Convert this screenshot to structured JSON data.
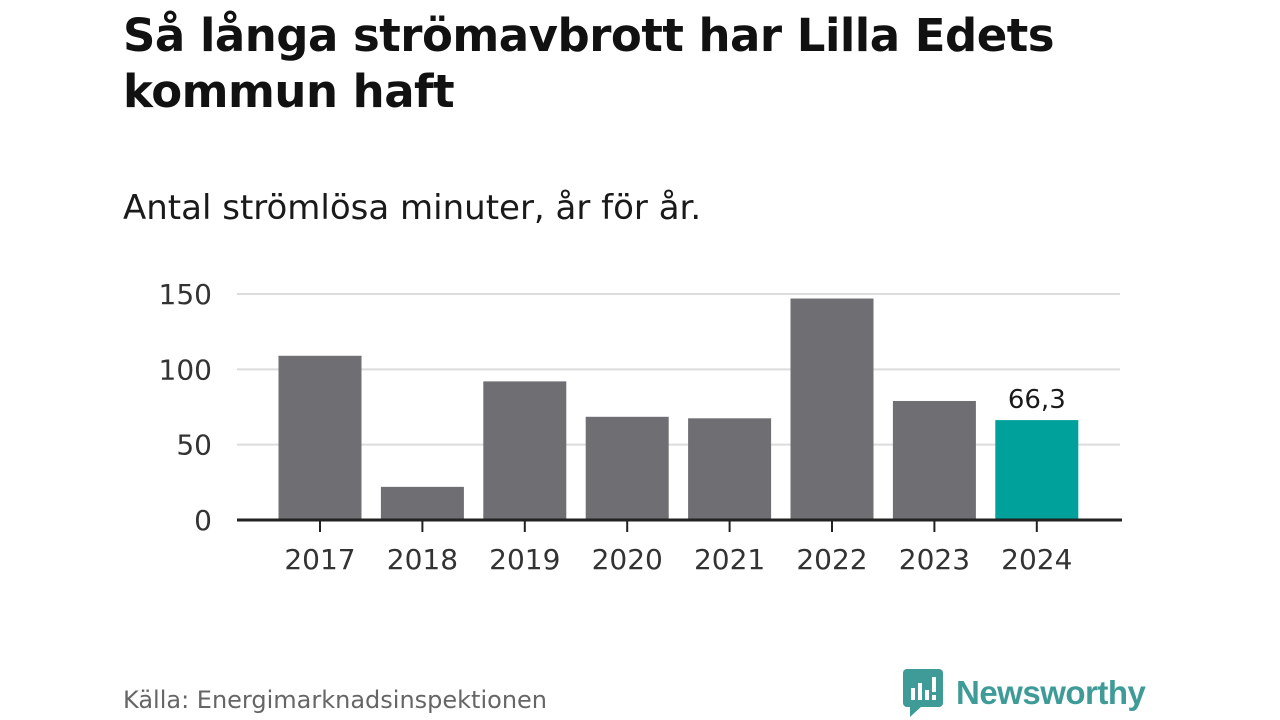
{
  "header": {
    "title": "Så långa strömavbrott har Lilla Edets kommun haft",
    "subtitle": "Antal strömlösa minuter, år för år."
  },
  "footer": {
    "source": "Källa: Energimarknadsinspektionen",
    "brand": "Newsworthy"
  },
  "colors": {
    "bar": "#6f6e73",
    "highlight": "#00a19a",
    "grid": "#dcdcdc",
    "axis": "#222222",
    "brand": "#3f9b98"
  },
  "chart_data": {
    "type": "bar",
    "title": "Så långa strömavbrott har Lilla Edets kommun haft",
    "subtitle": "Antal strömlösa minuter, år för år.",
    "xlabel": "",
    "ylabel": "",
    "categories": [
      "2017",
      "2018",
      "2019",
      "2020",
      "2021",
      "2022",
      "2023",
      "2024"
    ],
    "values": [
      109,
      22,
      92,
      68.5,
      67.5,
      147,
      79,
      66.3
    ],
    "highlight_index": 7,
    "data_labels": [
      {
        "index": 7,
        "text": "66,3"
      }
    ],
    "ylim": [
      0,
      150
    ],
    "yticks": [
      0,
      50,
      100,
      150
    ],
    "grid": true,
    "legend": "none"
  }
}
